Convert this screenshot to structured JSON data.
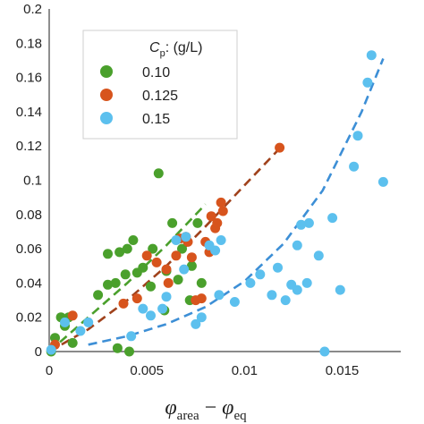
{
  "chart_data": {
    "type": "scatter",
    "xlabel": "φ_area − φ_eq",
    "xlabel_parts": {
      "phi": "φ",
      "sub1": "area",
      "minus": "−",
      "sub2": "eq"
    },
    "ylabel": "",
    "xlim": [
      0,
      0.018
    ],
    "ylim": [
      0,
      0.2
    ],
    "xticks": [
      0,
      0.005,
      0.01,
      0.015
    ],
    "xtick_labels": [
      "0",
      "0.005",
      "0.01",
      "0.015"
    ],
    "yticks": [
      0,
      0.02,
      0.04,
      0.06,
      0.08,
      0.1,
      0.12,
      0.14,
      0.16,
      0.18,
      0.2
    ],
    "ytick_labels": [
      "0",
      "0.02",
      "0.04",
      "0.06",
      "0.08",
      "0.1",
      "0.12",
      "0.14",
      "0.16",
      "0.18",
      "0.2"
    ],
    "grid": false,
    "legend": {
      "placement": "top-left",
      "title": "C_p: (g/L)",
      "title_parts": {
        "symbol": "C",
        "sub": "p",
        "rest": ": (g/L)"
      }
    },
    "series": [
      {
        "name": "0.10",
        "color": "#4aa02c",
        "points": [
          [
            0.0001,
            0.0
          ],
          [
            0.0003,
            0.008
          ],
          [
            0.0006,
            0.02
          ],
          [
            0.001,
            0.02
          ],
          [
            0.0008,
            0.015
          ],
          [
            0.0012,
            0.005
          ],
          [
            0.0025,
            0.033
          ],
          [
            0.003,
            0.039
          ],
          [
            0.003,
            0.057
          ],
          [
            0.0034,
            0.04
          ],
          [
            0.0036,
            0.058
          ],
          [
            0.0039,
            0.045
          ],
          [
            0.004,
            0.06
          ],
          [
            0.0043,
            0.065
          ],
          [
            0.0041,
            0.0
          ],
          [
            0.0035,
            0.002
          ],
          [
            0.0045,
            0.046
          ],
          [
            0.0048,
            0.049
          ],
          [
            0.0052,
            0.038
          ],
          [
            0.0053,
            0.06
          ],
          [
            0.0056,
            0.104
          ],
          [
            0.0059,
            0.024
          ],
          [
            0.006,
            0.047
          ],
          [
            0.0063,
            0.075
          ],
          [
            0.0066,
            0.042
          ],
          [
            0.0068,
            0.06
          ],
          [
            0.0072,
            0.03
          ],
          [
            0.0073,
            0.05
          ],
          [
            0.0076,
            0.075
          ],
          [
            0.0078,
            0.04
          ]
        ]
      },
      {
        "name": "0.125",
        "color": "#d7541d",
        "points": [
          [
            0.0003,
            0.004
          ],
          [
            0.0012,
            0.021
          ],
          [
            0.0038,
            0.028
          ],
          [
            0.0045,
            0.031
          ],
          [
            0.005,
            0.056
          ],
          [
            0.0055,
            0.052
          ],
          [
            0.006,
            0.048
          ],
          [
            0.0061,
            0.04
          ],
          [
            0.0065,
            0.056
          ],
          [
            0.0067,
            0.066
          ],
          [
            0.007,
            0.067
          ],
          [
            0.0071,
            0.064
          ],
          [
            0.0073,
            0.055
          ],
          [
            0.0075,
            0.03
          ],
          [
            0.0078,
            0.031
          ],
          [
            0.008,
            0.064
          ],
          [
            0.0082,
            0.058
          ],
          [
            0.0083,
            0.079
          ],
          [
            0.0085,
            0.072
          ],
          [
            0.0086,
            0.075
          ],
          [
            0.0088,
            0.087
          ],
          [
            0.0089,
            0.082
          ],
          [
            0.0118,
            0.119
          ]
        ]
      },
      {
        "name": "0.15",
        "color": "#5cc0ee",
        "points": [
          [
            0.0001,
            0.001
          ],
          [
            0.0008,
            0.017
          ],
          [
            0.0016,
            0.012
          ],
          [
            0.002,
            0.017
          ],
          [
            0.0042,
            0.009
          ],
          [
            0.0048,
            0.025
          ],
          [
            0.0052,
            0.021
          ],
          [
            0.0058,
            0.025
          ],
          [
            0.006,
            0.032
          ],
          [
            0.0065,
            0.065
          ],
          [
            0.0069,
            0.048
          ],
          [
            0.007,
            0.067
          ],
          [
            0.0075,
            0.016
          ],
          [
            0.0078,
            0.02
          ],
          [
            0.0082,
            0.062
          ],
          [
            0.0085,
            0.059
          ],
          [
            0.0087,
            0.033
          ],
          [
            0.0088,
            0.065
          ],
          [
            0.0095,
            0.029
          ],
          [
            0.0103,
            0.04
          ],
          [
            0.0108,
            0.045
          ],
          [
            0.0114,
            0.033
          ],
          [
            0.0117,
            0.049
          ],
          [
            0.0121,
            0.03
          ],
          [
            0.0124,
            0.039
          ],
          [
            0.0127,
            0.062
          ],
          [
            0.0129,
            0.074
          ],
          [
            0.0132,
            0.04
          ],
          [
            0.0133,
            0.075
          ],
          [
            0.0138,
            0.056
          ],
          [
            0.0145,
            0.078
          ],
          [
            0.0149,
            0.036
          ],
          [
            0.0156,
            0.108
          ],
          [
            0.0158,
            0.126
          ],
          [
            0.0163,
            0.157
          ],
          [
            0.0165,
            0.173
          ],
          [
            0.0171,
            0.099
          ],
          [
            0.0141,
            0.0
          ],
          [
            0.0127,
            0.036
          ]
        ]
      }
    ],
    "trend_lines": [
      {
        "series": "0.10",
        "color": "#4aa02c",
        "points": [
          [
            0,
            0
          ],
          [
            0.002,
            0.02
          ],
          [
            0.004,
            0.04
          ],
          [
            0.006,
            0.062
          ],
          [
            0.008,
            0.086
          ]
        ]
      },
      {
        "series": "0.125",
        "color": "#a0421c",
        "points": [
          [
            0,
            0
          ],
          [
            0.002,
            0.013
          ],
          [
            0.004,
            0.03
          ],
          [
            0.006,
            0.05
          ],
          [
            0.008,
            0.073
          ],
          [
            0.01,
            0.097
          ],
          [
            0.012,
            0.121
          ]
        ]
      },
      {
        "series": "0.15",
        "color": "#3d8fd6",
        "points": [
          [
            0.002,
            0.004
          ],
          [
            0.004,
            0.009
          ],
          [
            0.006,
            0.016
          ],
          [
            0.008,
            0.026
          ],
          [
            0.01,
            0.041
          ],
          [
            0.012,
            0.063
          ],
          [
            0.014,
            0.094
          ],
          [
            0.016,
            0.14
          ],
          [
            0.0171,
            0.171
          ]
        ]
      }
    ]
  }
}
